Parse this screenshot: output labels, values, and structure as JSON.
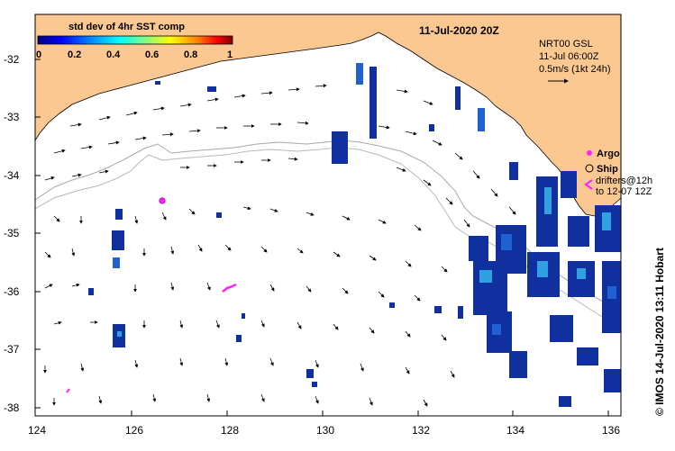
{
  "map": {
    "date_title": "11-Jul-2020 20Z",
    "colorbar": {
      "title": "std dev of 4hr SST comp",
      "ticks": [
        "0",
        "0.2",
        "0.4",
        "0.6",
        "0.8",
        "1"
      ],
      "stops": [
        "#000080",
        "#0000ff",
        "#00a0ff",
        "#00ffff",
        "#80ff80",
        "#ffff00",
        "#ff8000",
        "#ff0000",
        "#800000"
      ]
    },
    "current_source": {
      "line1": "NRT00 GSL",
      "line2": "11-Jul 06:00Z",
      "scale_label": "0.5m/s (1kt 24h)"
    },
    "markers": {
      "argo_label": "Argo",
      "ship_label": "Ship",
      "drifters_line1": "drifters@12h",
      "drifters_line2": "to 12-07 12Z"
    },
    "credit": "© IMOS 14-Jul-2020 13:11 Hobart",
    "y_axis": [
      "-32",
      "-33",
      "-34",
      "-35",
      "-36",
      "-37",
      "-38"
    ],
    "x_axis": [
      "124",
      "126",
      "128",
      "130",
      "132",
      "134",
      "136"
    ],
    "colors": {
      "land": "#fcc891",
      "sst_dark": "#1030a0",
      "sst_mid": "#2060d0",
      "sst_light": "#30a0e0",
      "argo": "#ff20ff",
      "shelf_contour": "#a0a0a0"
    }
  }
}
